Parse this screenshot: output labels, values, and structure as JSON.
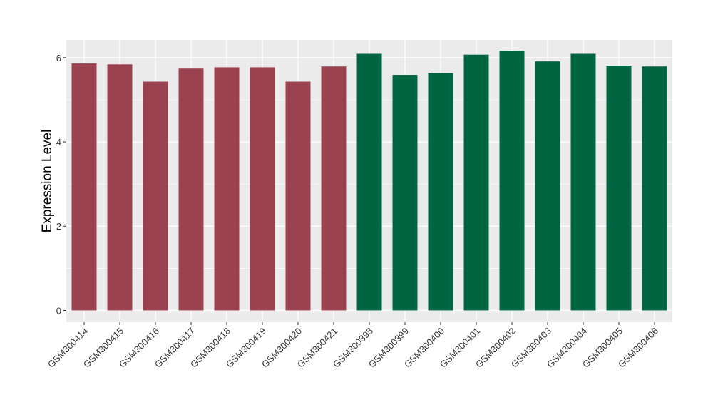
{
  "chart_data": {
    "type": "bar",
    "title": "",
    "xlabel": "",
    "ylabel": "Expression Level",
    "ylim": [
      -0.28,
      6.42
    ],
    "yticks": [
      0,
      2,
      4,
      6
    ],
    "grid": true,
    "legend": "none",
    "categories": [
      "GSM300414",
      "GSM300415",
      "GSM300416",
      "GSM300417",
      "GSM300418",
      "GSM300419",
      "GSM300420",
      "GSM300421",
      "GSM300398",
      "GSM300399",
      "GSM300400",
      "GSM300401",
      "GSM300402",
      "GSM300403",
      "GSM300404",
      "GSM300405",
      "GSM300406"
    ],
    "values": [
      5.86,
      5.84,
      5.43,
      5.74,
      5.77,
      5.77,
      5.43,
      5.79,
      6.09,
      5.59,
      5.63,
      6.07,
      6.16,
      5.91,
      6.09,
      5.81,
      5.79
    ],
    "colors": [
      "#9b4251",
      "#9b4251",
      "#9b4251",
      "#9b4251",
      "#9b4251",
      "#9b4251",
      "#9b4251",
      "#9b4251",
      "#006641",
      "#006641",
      "#006641",
      "#006641",
      "#006641",
      "#006641",
      "#006641",
      "#006641",
      "#006641"
    ],
    "panel_background": "#ebebeb",
    "grid_color": "#ffffff"
  }
}
